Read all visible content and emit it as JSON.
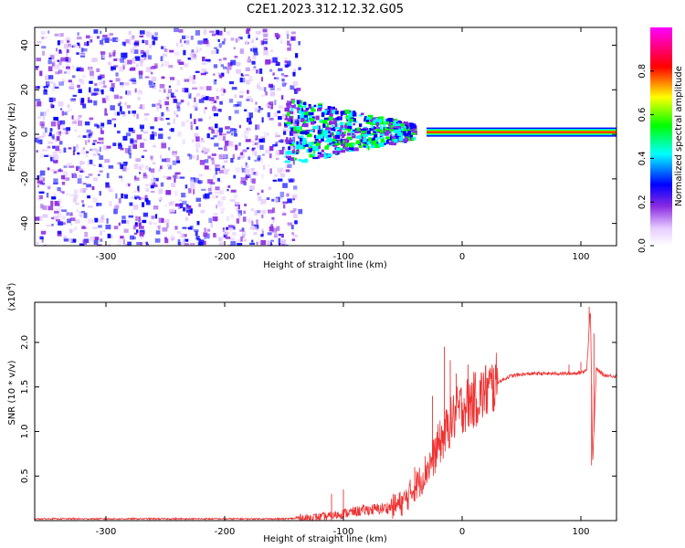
{
  "figure": {
    "title": "C2E1.2023.312.12.32.G05"
  },
  "chart_data": [
    {
      "type": "heatmap",
      "xlabel": "Height of straight line (km)",
      "ylabel": "Frequency (Hz)",
      "xlim": [
        -360,
        130
      ],
      "ylim": [
        -50,
        48
      ],
      "xticks": [
        -300,
        -200,
        -100,
        0,
        100
      ],
      "yticks": [
        -40,
        -20,
        0,
        20,
        40
      ],
      "colorbar": {
        "label": "Normalized spectral amplitude",
        "range": [
          0.0,
          1.0
        ],
        "ticks": [
          "0.0",
          "0.2",
          "0.4",
          "0.6",
          "0.8"
        ],
        "colors": [
          "#ffffff",
          "#e6ccff",
          "#8a2be2",
          "#0000ff",
          "#00ffff",
          "#00ff00",
          "#ffff00",
          "#ff0000",
          "#ff00ff"
        ]
      },
      "regions": [
        {
          "x": [
            -360,
            -150
          ],
          "frequency_band": [
            -50,
            48
          ],
          "level": "0.15-0.45",
          "description": "scattered noise"
        },
        {
          "x": [
            -150,
            -40
          ],
          "center_frequency": 3,
          "level": "0.3-0.6"
        },
        {
          "x": [
            -30,
            130
          ],
          "center_frequency": 1,
          "level": "0.7-1.0"
        }
      ]
    },
    {
      "type": "line",
      "xlabel": "Height of straight line (km)",
      "ylabel": "SNR (10 * v/v)",
      "multiplier": "(x10^4)",
      "multiplier_base": "(x10",
      "multiplier_exp": "4",
      "multiplier_close": ")",
      "xlim": [
        -360,
        130
      ],
      "ylim": [
        0,
        2.45
      ],
      "xticks": [
        -300,
        -200,
        -100,
        0,
        100
      ],
      "yticks": [
        "0.5",
        "1.0",
        "1.5",
        "2.0"
      ],
      "series": [
        {
          "color": "#ee3333",
          "x": [
            -360,
            -300,
            -200,
            -150,
            -130,
            -110,
            -100,
            -90,
            -80,
            -70,
            -60,
            -50,
            -45,
            -40,
            -35,
            -30,
            -25,
            -20,
            -15,
            -10,
            -5,
            0,
            10,
            20,
            30,
            40,
            50,
            60,
            70,
            80,
            90,
            100,
            105,
            108,
            110,
            113,
            120,
            130
          ],
          "values": [
            0.02,
            0.02,
            0.02,
            0.02,
            0.03,
            0.05,
            0.08,
            0.1,
            0.12,
            0.13,
            0.15,
            0.2,
            0.28,
            0.38,
            0.45,
            0.58,
            0.68,
            0.85,
            0.95,
            1.1,
            1.2,
            1.28,
            1.35,
            1.45,
            1.55,
            1.62,
            1.64,
            1.65,
            1.65,
            1.65,
            1.65,
            1.66,
            1.7,
            2.4,
            0.65,
            1.7,
            1.63,
            1.62
          ],
          "spikes": [
            [
              -15,
              1.95
            ],
            [
              -10,
              1.8
            ],
            [
              -5,
              1.65
            ],
            [
              -25,
              1.4
            ],
            [
              5,
              1.75
            ],
            [
              8,
              1.55
            ],
            [
              -40,
              0.6
            ],
            [
              -100,
              0.35
            ],
            [
              -110,
              0.3
            ],
            [
              90,
              1.75
            ],
            [
              100,
              1.78
            ],
            [
              107,
              2.4
            ],
            [
              109,
              0.62
            ],
            [
              111,
              2.1
            ]
          ]
        }
      ]
    }
  ]
}
